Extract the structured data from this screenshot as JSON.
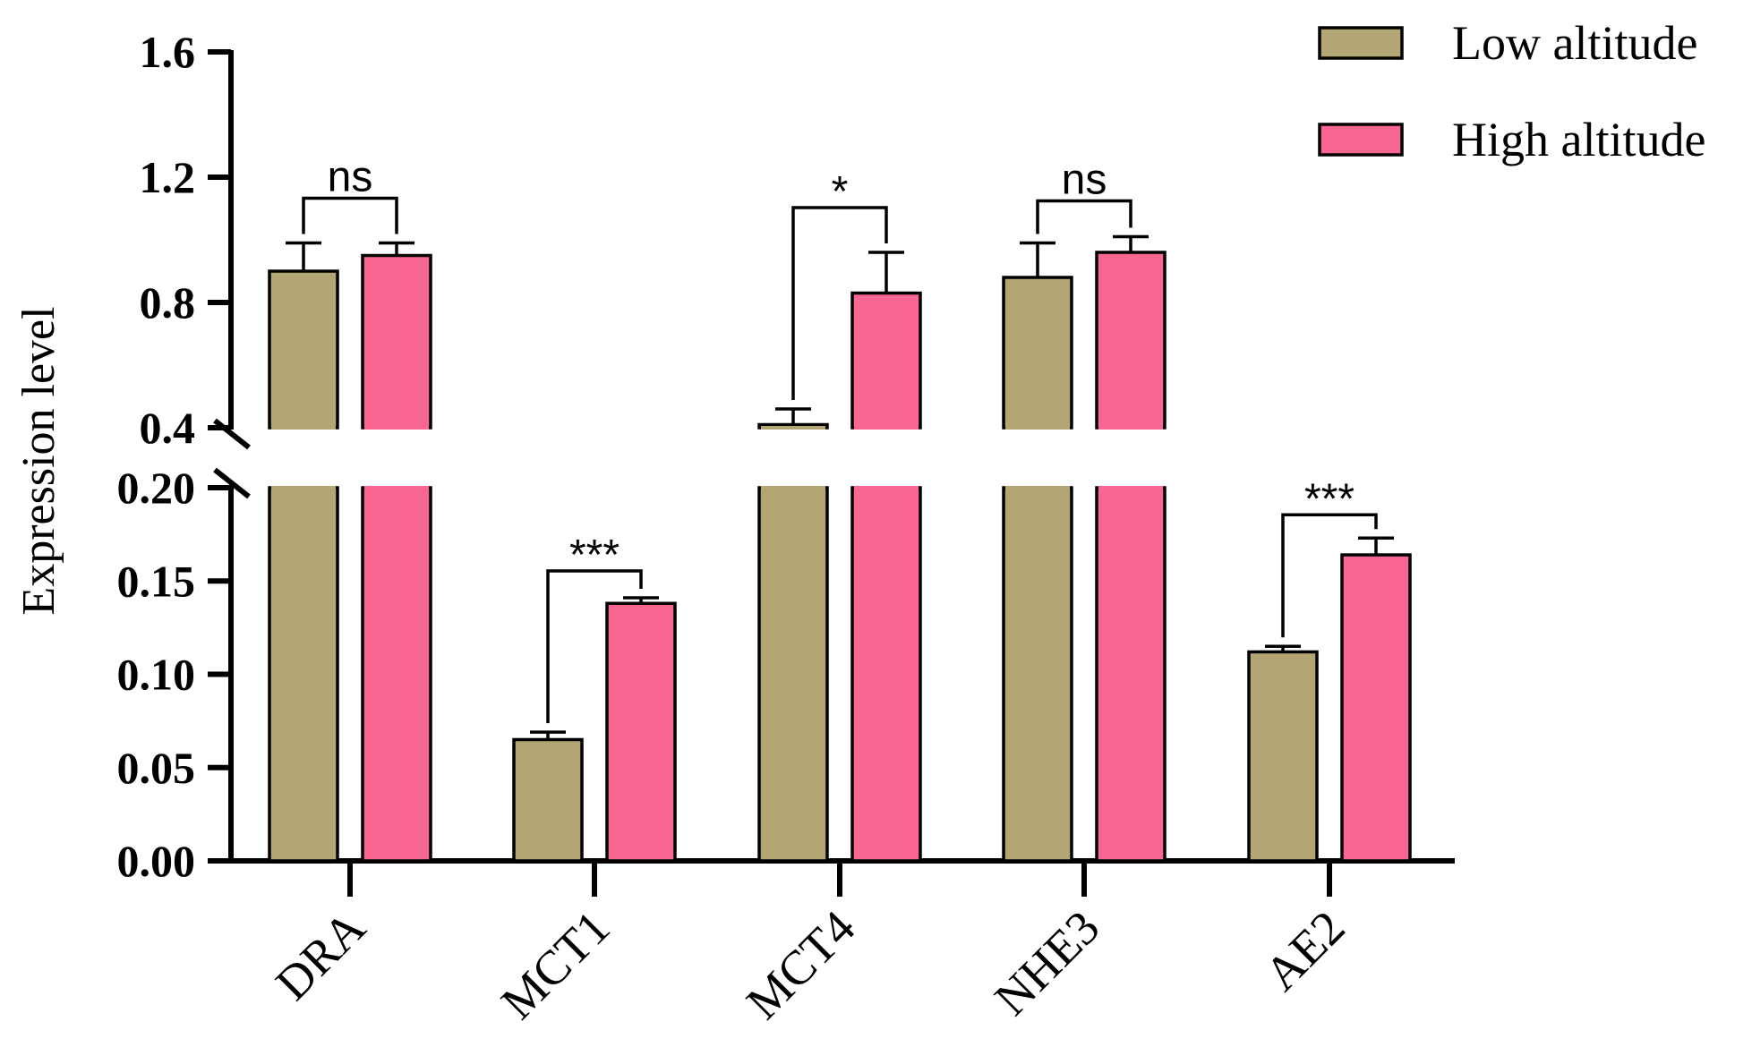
{
  "chart_data": {
    "type": "bar",
    "title": "",
    "xlabel": "",
    "ylabel": "Expression level",
    "categories": [
      "DRA",
      "MCT1",
      "MCT4",
      "NHE3",
      "AE2"
    ],
    "series": [
      {
        "name": "Low altitude",
        "color": "#b3a674",
        "values": [
          0.9,
          0.065,
          0.41,
          0.88,
          0.112
        ],
        "errors": [
          0.09,
          0.004,
          0.05,
          0.11,
          0.003
        ]
      },
      {
        "name": "High altitude",
        "color": "#f76791",
        "values": [
          0.95,
          0.138,
          0.83,
          0.96,
          0.164
        ],
        "errors": [
          0.04,
          0.003,
          0.13,
          0.05,
          0.009
        ]
      }
    ],
    "axis_break": {
      "lower_range": [
        0,
        0.2
      ],
      "upper_range": [
        0.4,
        1.6
      ],
      "lower_ticks": [
        "0.00",
        "0.05",
        "0.10",
        "0.15",
        "0.20"
      ],
      "upper_ticks": [
        "0.4",
        "0.8",
        "1.2",
        "1.6"
      ]
    },
    "significance": [
      {
        "category": "DRA",
        "label": "ns"
      },
      {
        "category": "MCT1",
        "label": "***"
      },
      {
        "category": "MCT4",
        "label": "*"
      },
      {
        "category": "NHE3",
        "label": "ns"
      },
      {
        "category": "AE2",
        "label": "***"
      }
    ],
    "legend_position": "top-right"
  }
}
